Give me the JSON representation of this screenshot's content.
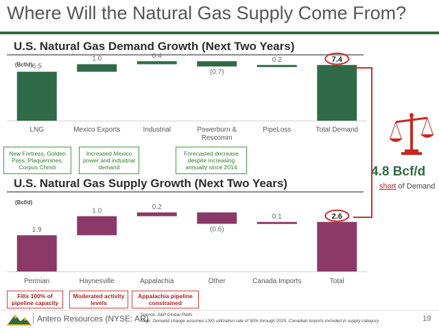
{
  "slide": {
    "title": "Where Will the Natural Gas Supply Come From?",
    "page_number": "19"
  },
  "colors": {
    "demand_bar": "#2f6b47",
    "supply_bar": "#8b3a67",
    "accent_green": "#2e6b3f",
    "callout_green": "#3c9a3c",
    "callout_red": "#d63a3a",
    "bracket_red": "#d42a2a",
    "scale_red": "#c8281f"
  },
  "demand": {
    "section_title": "U.S. Natural Gas Demand Growth (Next Two Years)",
    "unit": "(Bcf/d)",
    "total_label": "7.4",
    "callouts": [
      "New Fortress, Golden Pass, Plaquemines, Corpus Christi",
      "Increased Mexico power and industrial demand",
      "Forecasted decrease despite increasing annually since 2014"
    ]
  },
  "supply": {
    "section_title": "U.S. Natural Gas Supply Growth (Next Two Years)",
    "unit": "(Bcf/d)",
    "total_label": "2.6",
    "callouts": [
      "Fills 100% of pipeline capacity",
      "Moderated activity levels",
      "Appalachia pipeline constrained"
    ]
  },
  "shortfall": {
    "value": "4.8 Bcf/d",
    "short_word": "short",
    "suffix": " of Demand"
  },
  "icons": {
    "scale": "scale-balance-icon",
    "logo": "mountain-logo-icon"
  },
  "footer": {
    "company": "Antero Resources (NYSE: AR)",
    "source": "Source:  S&P Global Platts",
    "note": "Note:  Demand change assumes LNG utilization rate of 90% through 2025. Canadian Imports included in supply category."
  },
  "chart_data": [
    {
      "type": "bar",
      "subtype": "waterfall",
      "title": "U.S. Natural Gas Demand Growth (Next Two Years)",
      "ylabel": "(Bcf/d)",
      "categories": [
        "LNG",
        "Mexico Exports",
        "Industrial",
        "Powerburn & Rescomm",
        "PipeLoss",
        "Total Demand"
      ],
      "values": [
        6.5,
        1.0,
        0.4,
        -0.7,
        0.2,
        7.4
      ],
      "value_labels": [
        "6.5",
        "1.0",
        "0.4",
        "(0.7)",
        "0.2",
        "7.4"
      ],
      "is_total": [
        false,
        false,
        false,
        false,
        false,
        true
      ],
      "ylim": [
        0,
        8.2
      ],
      "grid": false,
      "legend": "none"
    },
    {
      "type": "bar",
      "subtype": "waterfall",
      "title": "U.S. Natural Gas Supply Growth (Next Two Years)",
      "ylabel": "(Bcf/d)",
      "categories": [
        "Permian",
        "Haynesville",
        "Appalachia",
        "Other",
        "Canada Imports",
        "Total"
      ],
      "values": [
        1.9,
        1.0,
        0.2,
        -0.6,
        0.1,
        2.6
      ],
      "value_labels": [
        "1.9",
        "1.0",
        "0.2",
        "(0.6)",
        "0.1",
        "2.6"
      ],
      "is_total": [
        false,
        false,
        false,
        false,
        false,
        true
      ],
      "ylim": [
        0,
        3.6
      ],
      "grid": false,
      "legend": "none"
    }
  ]
}
